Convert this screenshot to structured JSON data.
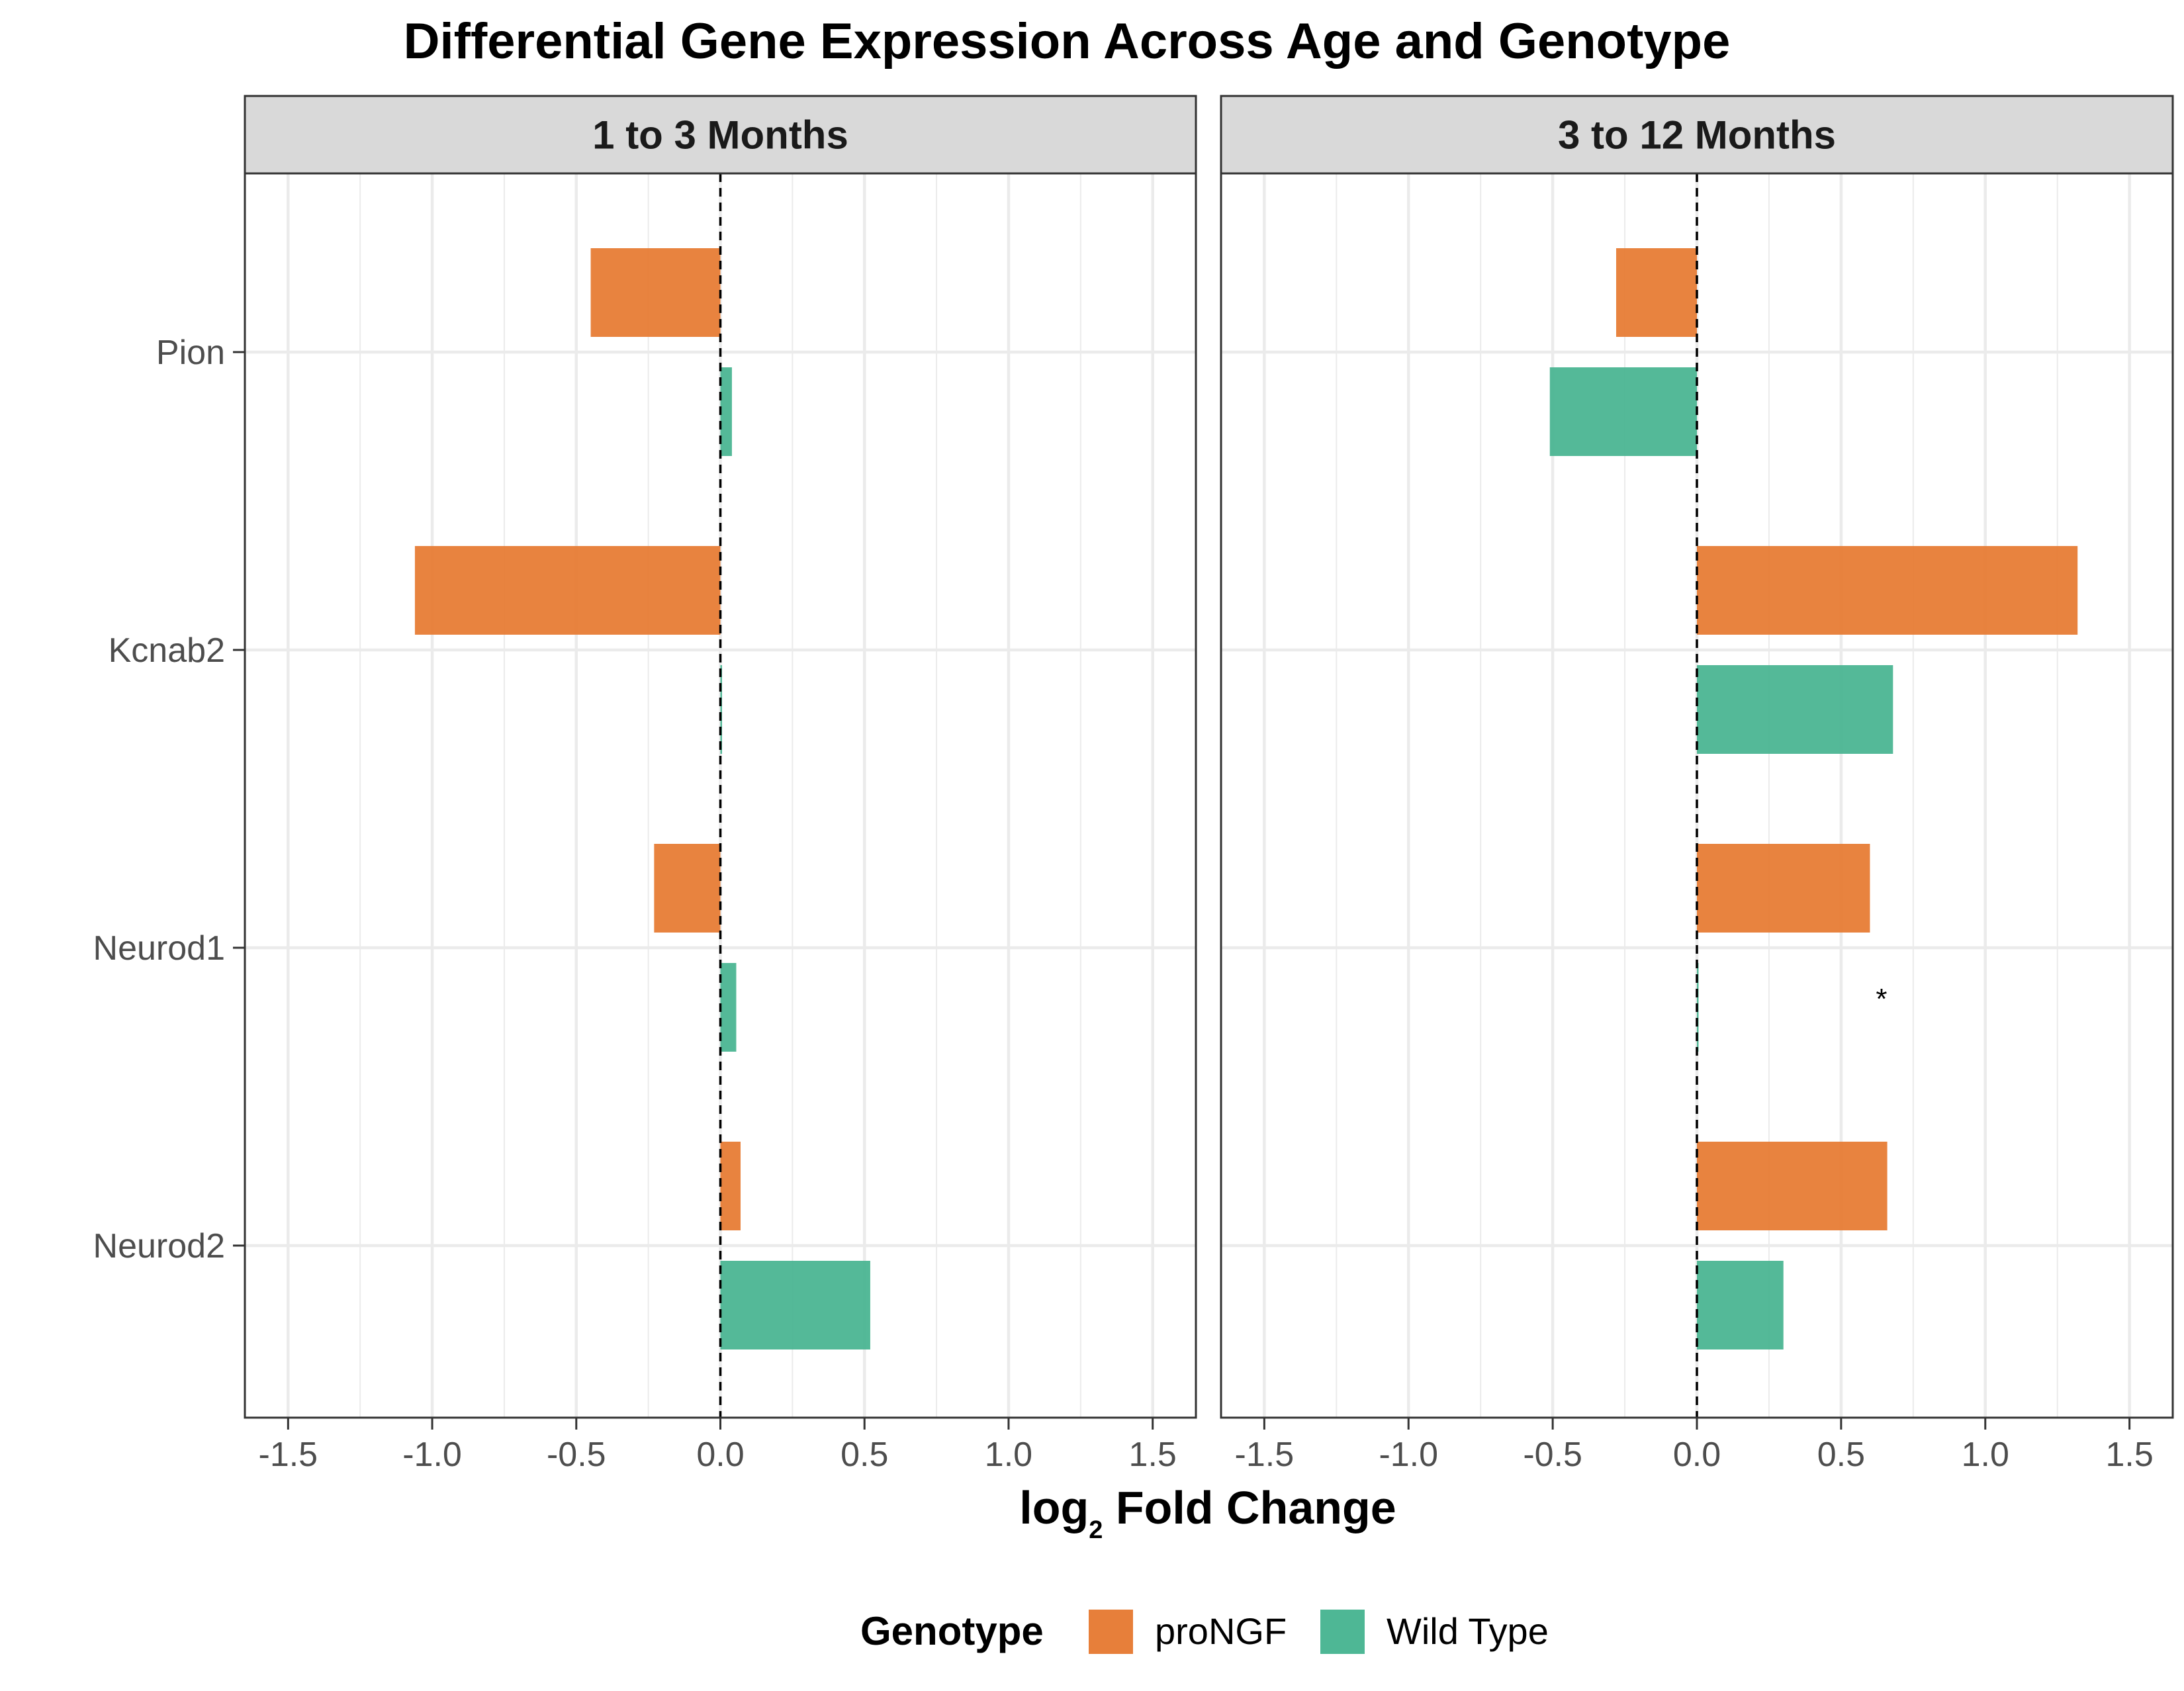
{
  "chart_data": {
    "type": "bar",
    "orientation": "horizontal",
    "title": "Differential Gene Expression Across Age and Genotype",
    "xlabel": {
      "main": "log",
      "subscript": "2",
      "rest": " Fold Change"
    },
    "ylabel": "",
    "xlim": [
      -1.65,
      1.65
    ],
    "xticks": [
      -1.5,
      -1.0,
      -0.5,
      0.0,
      0.5,
      1.0,
      1.5
    ],
    "xtick_labels": [
      "-1.5",
      "-1.0",
      "-0.5",
      "0.0",
      "0.5",
      "1.0",
      "1.5"
    ],
    "categories": [
      "Pion",
      "Kcnab2",
      "Neurod1",
      "Neurod2"
    ],
    "reference_line": 0,
    "grid": true,
    "legend": {
      "title": "Genotype",
      "position": "bottom",
      "entries": [
        {
          "name": "proNGF",
          "color": "#e6782f"
        },
        {
          "name": "Wild Type",
          "color": "#45b38f"
        }
      ]
    },
    "panels": [
      {
        "label": "1 to 3 Months",
        "series": [
          {
            "name": "proNGF",
            "color": "#e6782f",
            "values": [
              -0.45,
              -1.06,
              -0.23,
              0.07
            ]
          },
          {
            "name": "Wild Type",
            "color": "#45b38f",
            "values": [
              0.04,
              0.005,
              0.055,
              0.52
            ]
          }
        ],
        "annotations": []
      },
      {
        "label": "3 to 12 Months",
        "series": [
          {
            "name": "proNGF",
            "color": "#e6782f",
            "values": [
              -0.28,
              1.32,
              0.6,
              0.66
            ]
          },
          {
            "name": "Wild Type",
            "color": "#45b38f",
            "values": [
              -0.51,
              0.68,
              0.005,
              0.3
            ]
          }
        ],
        "annotations": [
          {
            "text": "*",
            "category": "Neurod1",
            "series": "Wild Type",
            "x": 0.64
          }
        ]
      }
    ]
  }
}
